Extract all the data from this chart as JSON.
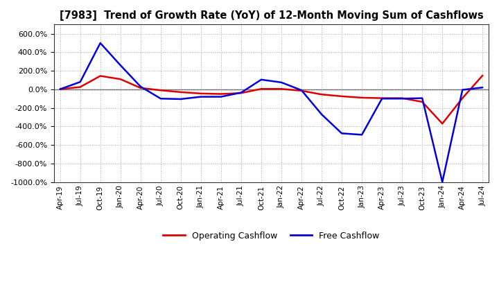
{
  "title": "[7983]  Trend of Growth Rate (YoY) of 12-Month Moving Sum of Cashflows",
  "ylim": [
    -1000,
    700
  ],
  "yticks": [
    -1000,
    -800,
    -600,
    -400,
    -200,
    0,
    200,
    400,
    600
  ],
  "background_color": "#ffffff",
  "grid_color": "#aaaaaa",
  "zero_line_color": "#555555",
  "operating_color": "#dd0000",
  "free_color": "#0000dd",
  "legend_labels": [
    "Operating Cashflow",
    "Free Cashflow"
  ],
  "x_labels": [
    "Apr-19",
    "Jul-19",
    "Oct-19",
    "Jan-20",
    "Apr-20",
    "Jul-20",
    "Oct-20",
    "Jan-21",
    "Apr-21",
    "Jul-21",
    "Oct-21",
    "Jan-22",
    "Apr-22",
    "Jul-22",
    "Oct-22",
    "Jan-23",
    "Apr-23",
    "Jul-23",
    "Oct-23",
    "Jan-24",
    "Apr-24",
    "Jul-24"
  ],
  "operating": [
    2,
    25,
    145,
    110,
    15,
    -10,
    -30,
    -45,
    -50,
    -40,
    5,
    5,
    -15,
    -55,
    -75,
    -90,
    -95,
    -95,
    -135,
    -370,
    -95,
    150
  ],
  "free": [
    2,
    80,
    500,
    260,
    30,
    -100,
    -105,
    -80,
    -80,
    -35,
    105,
    75,
    -10,
    -270,
    -475,
    -490,
    -100,
    -100,
    -95,
    -1000,
    -5,
    20
  ]
}
